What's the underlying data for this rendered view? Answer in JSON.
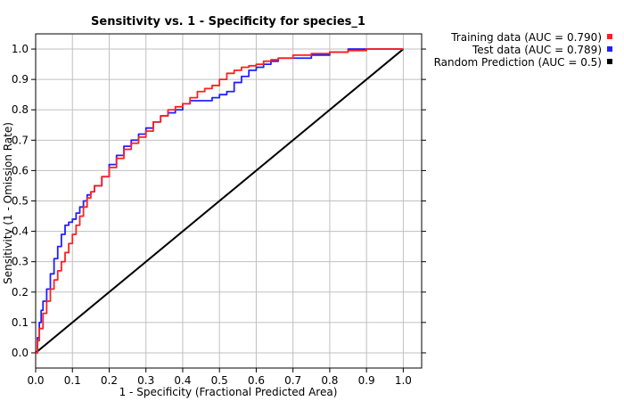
{
  "chart_data": {
    "type": "line",
    "title": "Sensitivity vs. 1 - Specificity for species_1",
    "xlabel": "1 - Specificity  (Fractional Predicted Area)",
    "ylabel": "Sensitivity (1 - Omission Rate)",
    "xlim": [
      0,
      1.05
    ],
    "ylim": [
      -0.05,
      1.05
    ],
    "xticks": [
      0.0,
      0.1,
      0.2,
      0.3,
      0.4,
      0.5,
      0.6,
      0.7,
      0.8,
      0.9,
      1.0
    ],
    "yticks": [
      0.0,
      0.1,
      0.2,
      0.3,
      0.4,
      0.5,
      0.6,
      0.7,
      0.8,
      0.9,
      1.0
    ],
    "xtick_labels": [
      "0.0",
      "0.1",
      "0.2",
      "0.3",
      "0.4",
      "0.5",
      "0.6",
      "0.7",
      "0.8",
      "0.9",
      "1.0"
    ],
    "ytick_labels": [
      "0.0",
      "0.1",
      "0.2",
      "0.3",
      "0.4",
      "0.5",
      "0.6",
      "0.7",
      "0.8",
      "0.9",
      "1.0"
    ],
    "grid": true,
    "legend_position": "outside-top-right",
    "series": [
      {
        "name": "Training data (AUC = 0.790)",
        "color": "#ff2020",
        "x": [
          0.0,
          0.005,
          0.01,
          0.02,
          0.03,
          0.04,
          0.05,
          0.06,
          0.07,
          0.08,
          0.09,
          0.1,
          0.11,
          0.12,
          0.13,
          0.14,
          0.15,
          0.16,
          0.18,
          0.2,
          0.22,
          0.24,
          0.26,
          0.28,
          0.3,
          0.32,
          0.34,
          0.36,
          0.38,
          0.4,
          0.42,
          0.44,
          0.46,
          0.48,
          0.5,
          0.52,
          0.54,
          0.56,
          0.58,
          0.6,
          0.62,
          0.64,
          0.66,
          0.7,
          0.75,
          0.8,
          0.85,
          0.9,
          0.95,
          1.0
        ],
        "y": [
          0.0,
          0.04,
          0.08,
          0.13,
          0.17,
          0.21,
          0.24,
          0.27,
          0.3,
          0.33,
          0.36,
          0.39,
          0.42,
          0.45,
          0.48,
          0.51,
          0.53,
          0.55,
          0.58,
          0.61,
          0.64,
          0.67,
          0.69,
          0.71,
          0.73,
          0.76,
          0.78,
          0.8,
          0.81,
          0.82,
          0.84,
          0.86,
          0.87,
          0.88,
          0.9,
          0.92,
          0.93,
          0.94,
          0.945,
          0.95,
          0.96,
          0.965,
          0.97,
          0.98,
          0.985,
          0.99,
          0.995,
          1.0,
          1.0,
          1.0
        ]
      },
      {
        "name": "Test data (AUC = 0.789)",
        "color": "#2020ff",
        "x": [
          0.0,
          0.005,
          0.01,
          0.015,
          0.02,
          0.03,
          0.04,
          0.05,
          0.06,
          0.07,
          0.08,
          0.09,
          0.1,
          0.11,
          0.12,
          0.13,
          0.14,
          0.15,
          0.16,
          0.18,
          0.2,
          0.22,
          0.24,
          0.26,
          0.28,
          0.3,
          0.32,
          0.34,
          0.36,
          0.38,
          0.4,
          0.42,
          0.45,
          0.48,
          0.5,
          0.52,
          0.54,
          0.56,
          0.58,
          0.6,
          0.62,
          0.64,
          0.66,
          0.7,
          0.75,
          0.8,
          0.85,
          0.9,
          0.95,
          1.0
        ],
        "y": [
          0.0,
          0.05,
          0.1,
          0.14,
          0.17,
          0.21,
          0.26,
          0.31,
          0.35,
          0.39,
          0.42,
          0.43,
          0.44,
          0.46,
          0.48,
          0.5,
          0.52,
          0.53,
          0.55,
          0.58,
          0.62,
          0.65,
          0.68,
          0.7,
          0.72,
          0.74,
          0.76,
          0.78,
          0.79,
          0.8,
          0.82,
          0.83,
          0.83,
          0.84,
          0.85,
          0.86,
          0.89,
          0.91,
          0.93,
          0.94,
          0.95,
          0.96,
          0.97,
          0.97,
          0.98,
          0.99,
          1.0,
          1.0,
          1.0,
          1.0
        ]
      },
      {
        "name": "Random Prediction (AUC = 0.5)",
        "color": "#000000",
        "x": [
          0.0,
          1.0
        ],
        "y": [
          0.0,
          1.0
        ]
      }
    ]
  }
}
